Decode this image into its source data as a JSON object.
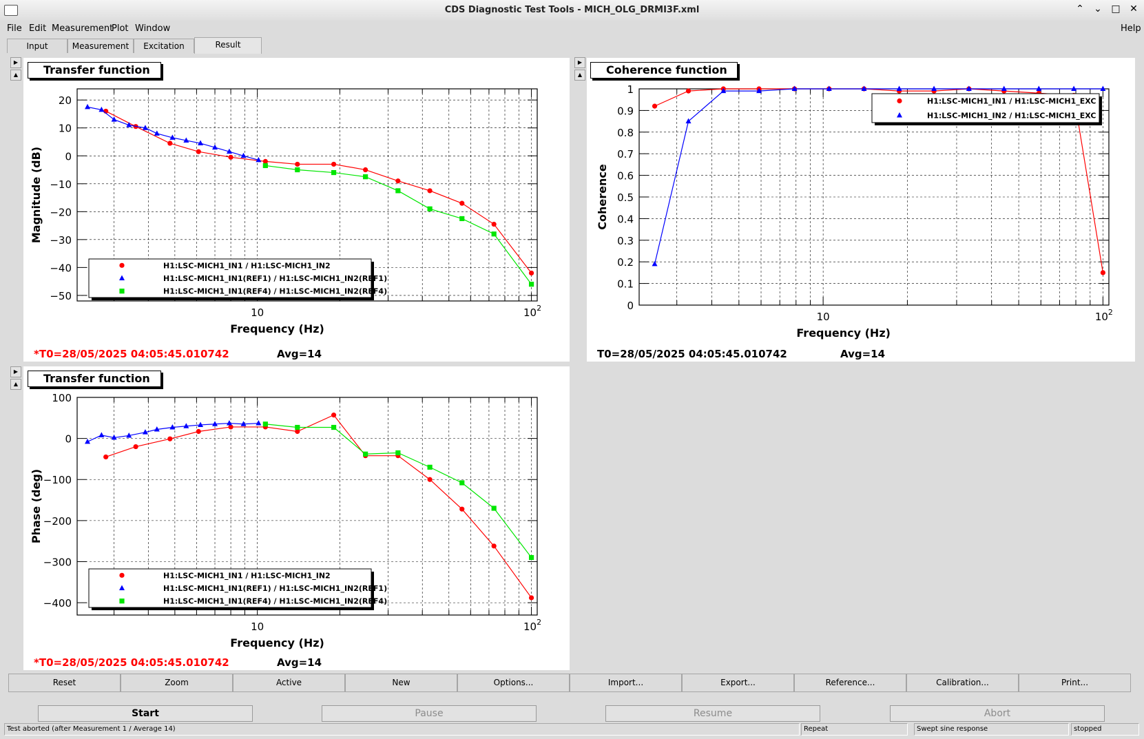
{
  "window": {
    "title": "CDS Diagnostic Test Tools - MICH_OLG_DRMI3F.xml"
  },
  "menu": {
    "file": "File",
    "edit": "Edit",
    "measurement": "Measurement",
    "plot": "Plot",
    "window": "Window",
    "help": "Help"
  },
  "tabs": [
    "Input",
    "Measurement",
    "Excitation",
    "Result"
  ],
  "colors": {
    "red": "#ff0000",
    "blue": "#0000ff",
    "green": "#00e600"
  },
  "plots": {
    "mag": {
      "title": "Transfer function",
      "t0": "*T0=28/05/2025 04:05:45.010742",
      "avg": "Avg=14"
    },
    "coh": {
      "title": "Coherence function",
      "t0": "T0=28/05/2025 04:05:45.010742",
      "avg": "Avg=14"
    },
    "phase": {
      "title": "Transfer function",
      "t0": "*T0=28/05/2025 04:05:45.010742",
      "avg": "Avg=14"
    }
  },
  "toolbar": [
    "Reset",
    "Zoom",
    "Active",
    "New",
    "Options...",
    "Import...",
    "Export...",
    "Reference...",
    "Calibration...",
    "Print..."
  ],
  "controls": {
    "start": "Start",
    "pause": "Pause",
    "resume": "Resume",
    "abort": "Abort"
  },
  "status": {
    "message": "Test aborted (after Measurement 1 / Average 14)",
    "mode": "Repeat",
    "type": "Swept sine response",
    "state": "stopped"
  },
  "chart_data": [
    {
      "type": "line",
      "title": "Transfer function",
      "xlabel": "Frequency (Hz)",
      "ylabel": "Magnitude (dB)",
      "xscale": "log",
      "xlim": [
        2.2,
        105
      ],
      "ylim": [
        -52,
        24
      ],
      "grid": true,
      "legend_position": "bottom-left",
      "series": [
        {
          "name": "H1:LSC-MICH1_IN1 / H1:LSC-MICH1_IN2",
          "color": "red",
          "marker": "circle",
          "x": [
            2.8,
            3.6,
            4.8,
            6.1,
            8,
            10.7,
            14,
            19,
            24.8,
            32.6,
            42.6,
            55.8,
            73,
            100
          ],
          "y": [
            16,
            10.5,
            4.5,
            1.5,
            -0.5,
            -2,
            -3,
            -3,
            -5,
            -9,
            -12.5,
            -17,
            -24.5,
            -42
          ]
        },
        {
          "name": "H1:LSC-MICH1_IN1(REF1) / H1:LSC-MICH1_IN2(REF1)",
          "color": "blue",
          "marker": "triangle",
          "x": [
            2.4,
            2.7,
            3.0,
            3.4,
            3.9,
            4.3,
            4.9,
            5.5,
            6.2,
            7.0,
            7.9,
            8.9,
            10.1
          ],
          "y": [
            17.5,
            16.5,
            13,
            11,
            10,
            8,
            6.5,
            5.5,
            4.5,
            3,
            1.5,
            0,
            -1.5
          ]
        },
        {
          "name": "H1:LSC-MICH1_IN1(REF4) / H1:LSC-MICH1_IN2(REF4)",
          "color": "green",
          "marker": "square",
          "x": [
            10.7,
            14,
            19,
            24.8,
            32.6,
            42.6,
            55.8,
            73,
            100
          ],
          "y": [
            -3.5,
            -5,
            -6,
            -7.5,
            -12.5,
            -19,
            -22.5,
            -28,
            -46
          ]
        }
      ]
    },
    {
      "type": "line",
      "title": "Coherence function",
      "xlabel": "Frequency (Hz)",
      "ylabel": "Coherence",
      "xscale": "log",
      "xlim": [
        2.2,
        105
      ],
      "ylim": [
        0,
        1
      ],
      "grid": true,
      "legend_position": "top-right",
      "series": [
        {
          "name": "H1:LSC-MICH1_IN1 / H1:LSC-MICH1_EXC",
          "color": "red",
          "marker": "circle",
          "x": [
            2.5,
            3.3,
            4.4,
            5.9,
            7.9,
            10.5,
            14,
            18.7,
            24.9,
            33.2,
            44.3,
            59,
            78.7,
            100
          ],
          "y": [
            0.92,
            0.99,
            1.0,
            1.0,
            1.0,
            1.0,
            1.0,
            0.99,
            0.99,
            1.0,
            0.99,
            0.98,
            0.97,
            0.15
          ]
        },
        {
          "name": "H1:LSC-MICH1_IN2 / H1:LSC-MICH1_EXC",
          "color": "blue",
          "marker": "triangle",
          "x": [
            2.5,
            3.3,
            4.4,
            5.9,
            7.9,
            10.5,
            14,
            18.7,
            24.9,
            33.2,
            44.3,
            59,
            78.7,
            100
          ],
          "y": [
            0.19,
            0.85,
            0.99,
            0.99,
            1.0,
            1.0,
            1.0,
            1.0,
            1.0,
            1.0,
            1.0,
            1.0,
            1.0,
            1.0
          ]
        }
      ]
    },
    {
      "type": "line",
      "title": "Transfer function",
      "xlabel": "Frequency (Hz)",
      "ylabel": "Phase (deg)",
      "xscale": "log",
      "xlim": [
        2.2,
        105
      ],
      "ylim": [
        -430,
        100
      ],
      "grid": true,
      "legend_position": "bottom-left",
      "series": [
        {
          "name": "H1:LSC-MICH1_IN1 / H1:LSC-MICH1_IN2",
          "color": "red",
          "marker": "circle",
          "x": [
            2.8,
            3.6,
            4.8,
            6.1,
            8,
            10.7,
            14,
            19,
            24.8,
            32.6,
            42.6,
            55.8,
            73,
            100
          ],
          "y": [
            -45,
            -20,
            -1,
            17,
            28,
            28,
            17,
            57,
            -42,
            -42,
            -100,
            -172,
            -262,
            -388
          ]
        },
        {
          "name": "H1:LSC-MICH1_IN1(REF1) / H1:LSC-MICH1_IN2(REF1)",
          "color": "blue",
          "marker": "triangle",
          "x": [
            2.4,
            2.7,
            3.0,
            3.4,
            3.9,
            4.3,
            4.9,
            5.5,
            6.2,
            7.0,
            7.9,
            8.9,
            10.1
          ],
          "y": [
            -8,
            8,
            2,
            7,
            15,
            22,
            27,
            30,
            33,
            35,
            37,
            35,
            37
          ]
        },
        {
          "name": "H1:LSC-MICH1_IN1(REF4) / H1:LSC-MICH1_IN2(REF4)",
          "color": "green",
          "marker": "square",
          "x": [
            10.7,
            14,
            19,
            24.8,
            32.6,
            42.6,
            55.8,
            73,
            100
          ],
          "y": [
            35,
            27,
            27,
            -38,
            -35,
            -70,
            -108,
            -170,
            -290
          ]
        }
      ]
    }
  ]
}
